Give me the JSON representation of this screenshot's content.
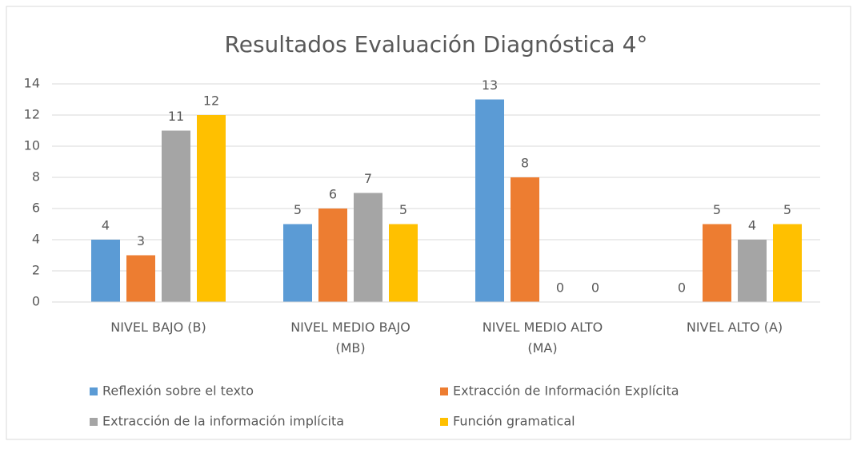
{
  "chart_data": {
    "type": "bar",
    "title": "Resultados Evaluación Diagnóstica 4°",
    "categories": [
      "NIVEL BAJO (B)",
      "NIVEL MEDIO BAJO (MB)",
      "NIVEL MEDIO ALTO (MA)",
      "NIVEL ALTO (A)"
    ],
    "series": [
      {
        "name": "Reflexión sobre el texto",
        "color": "#5b9bd5",
        "values": [
          4,
          5,
          13,
          0
        ]
      },
      {
        "name": "Extracción de Información Explícita",
        "color": "#ed7d31",
        "values": [
          3,
          6,
          8,
          5
        ]
      },
      {
        "name": "Extracción de la información implícita",
        "color": "#a5a5a5",
        "values": [
          11,
          7,
          0,
          4
        ]
      },
      {
        "name": "Función gramatical",
        "color": "#ffc000",
        "values": [
          12,
          5,
          0,
          5
        ]
      }
    ],
    "ylim": [
      0,
      14
    ],
    "yticks": [
      0,
      2,
      4,
      6,
      8,
      10,
      12,
      14
    ],
    "grid": true,
    "legend": "bottom"
  }
}
